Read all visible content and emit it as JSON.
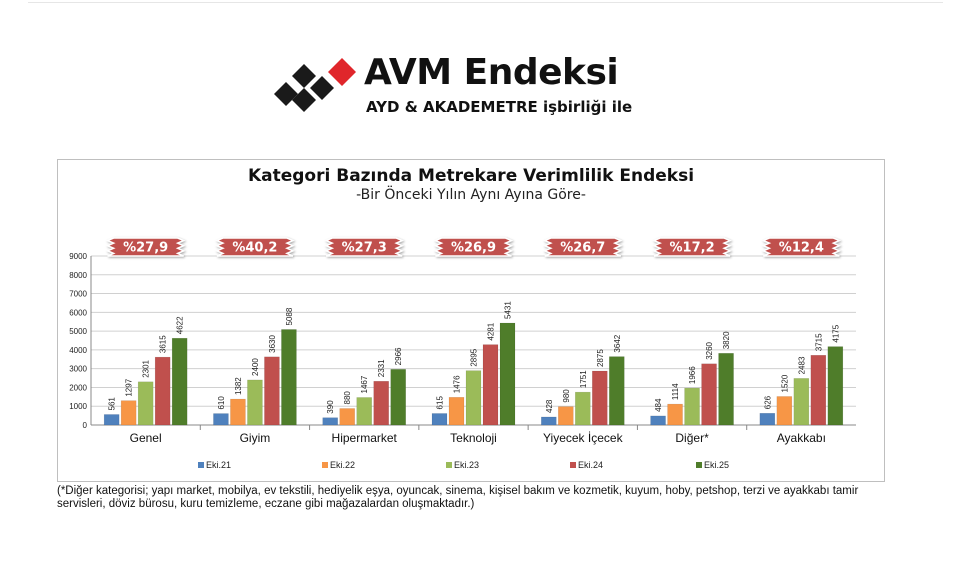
{
  "logo": {
    "title": "AVM Endeksi",
    "subtitle": "AYD & AKADEMETRE işbirliği ile"
  },
  "colors": {
    "series": [
      "#4f81bd",
      "#f79646",
      "#9bbb59",
      "#c0504d",
      "#4f7d2a"
    ],
    "badge": "#c0504d",
    "diamond_dark": "#1a1a1a",
    "diamond_red": "#e0262b"
  },
  "chart_data": {
    "type": "bar",
    "title": "Kategori Bazında Metrekare Verimlilik Endeksi",
    "subtitle": "-Bir Önceki Yılın Aynı Ayına Göre-",
    "categories": [
      "Genel",
      "Giyim",
      "Hipermarket",
      "Teknoloji",
      "Yiyecek İçecek",
      "Diğer*",
      "Ayakkabı"
    ],
    "change_labels": [
      "%27,9",
      "%40,2",
      "%27,3",
      "%26,9",
      "%26,7",
      "%17,2",
      "%12,4"
    ],
    "series": [
      {
        "name": "Eki.21",
        "values": [
          561,
          610,
          390,
          615,
          428,
          484,
          626
        ]
      },
      {
        "name": "Eki.22",
        "values": [
          1297,
          1382,
          880,
          1476,
          980,
          1114,
          1520
        ]
      },
      {
        "name": "Eki.23",
        "values": [
          2301,
          2400,
          1467,
          2895,
          1751,
          1966,
          2483
        ]
      },
      {
        "name": "Eki.24",
        "values": [
          3615,
          3630,
          2331,
          4281,
          2875,
          3260,
          3715
        ]
      },
      {
        "name": "Eki.25",
        "values": [
          4622,
          5088,
          2966,
          5431,
          3642,
          3820,
          4175
        ]
      }
    ],
    "ylim": [
      0,
      9000
    ],
    "yticks": [
      0,
      1000,
      2000,
      3000,
      4000,
      5000,
      6000,
      7000,
      8000,
      9000
    ],
    "grid": true,
    "legend_position": "bottom"
  },
  "footnote": "(*Diğer kategorisi; yapı market, mobilya, ev tekstili, hediyelik eşya, oyuncak, sinema, kişisel bakım ve kozmetik, kuyum, hoby, petshop, terzi ve ayakkabı tamir servisleri, döviz bürosu, kuru temizleme, eczane gibi mağazalardan oluşmaktadır.)"
}
